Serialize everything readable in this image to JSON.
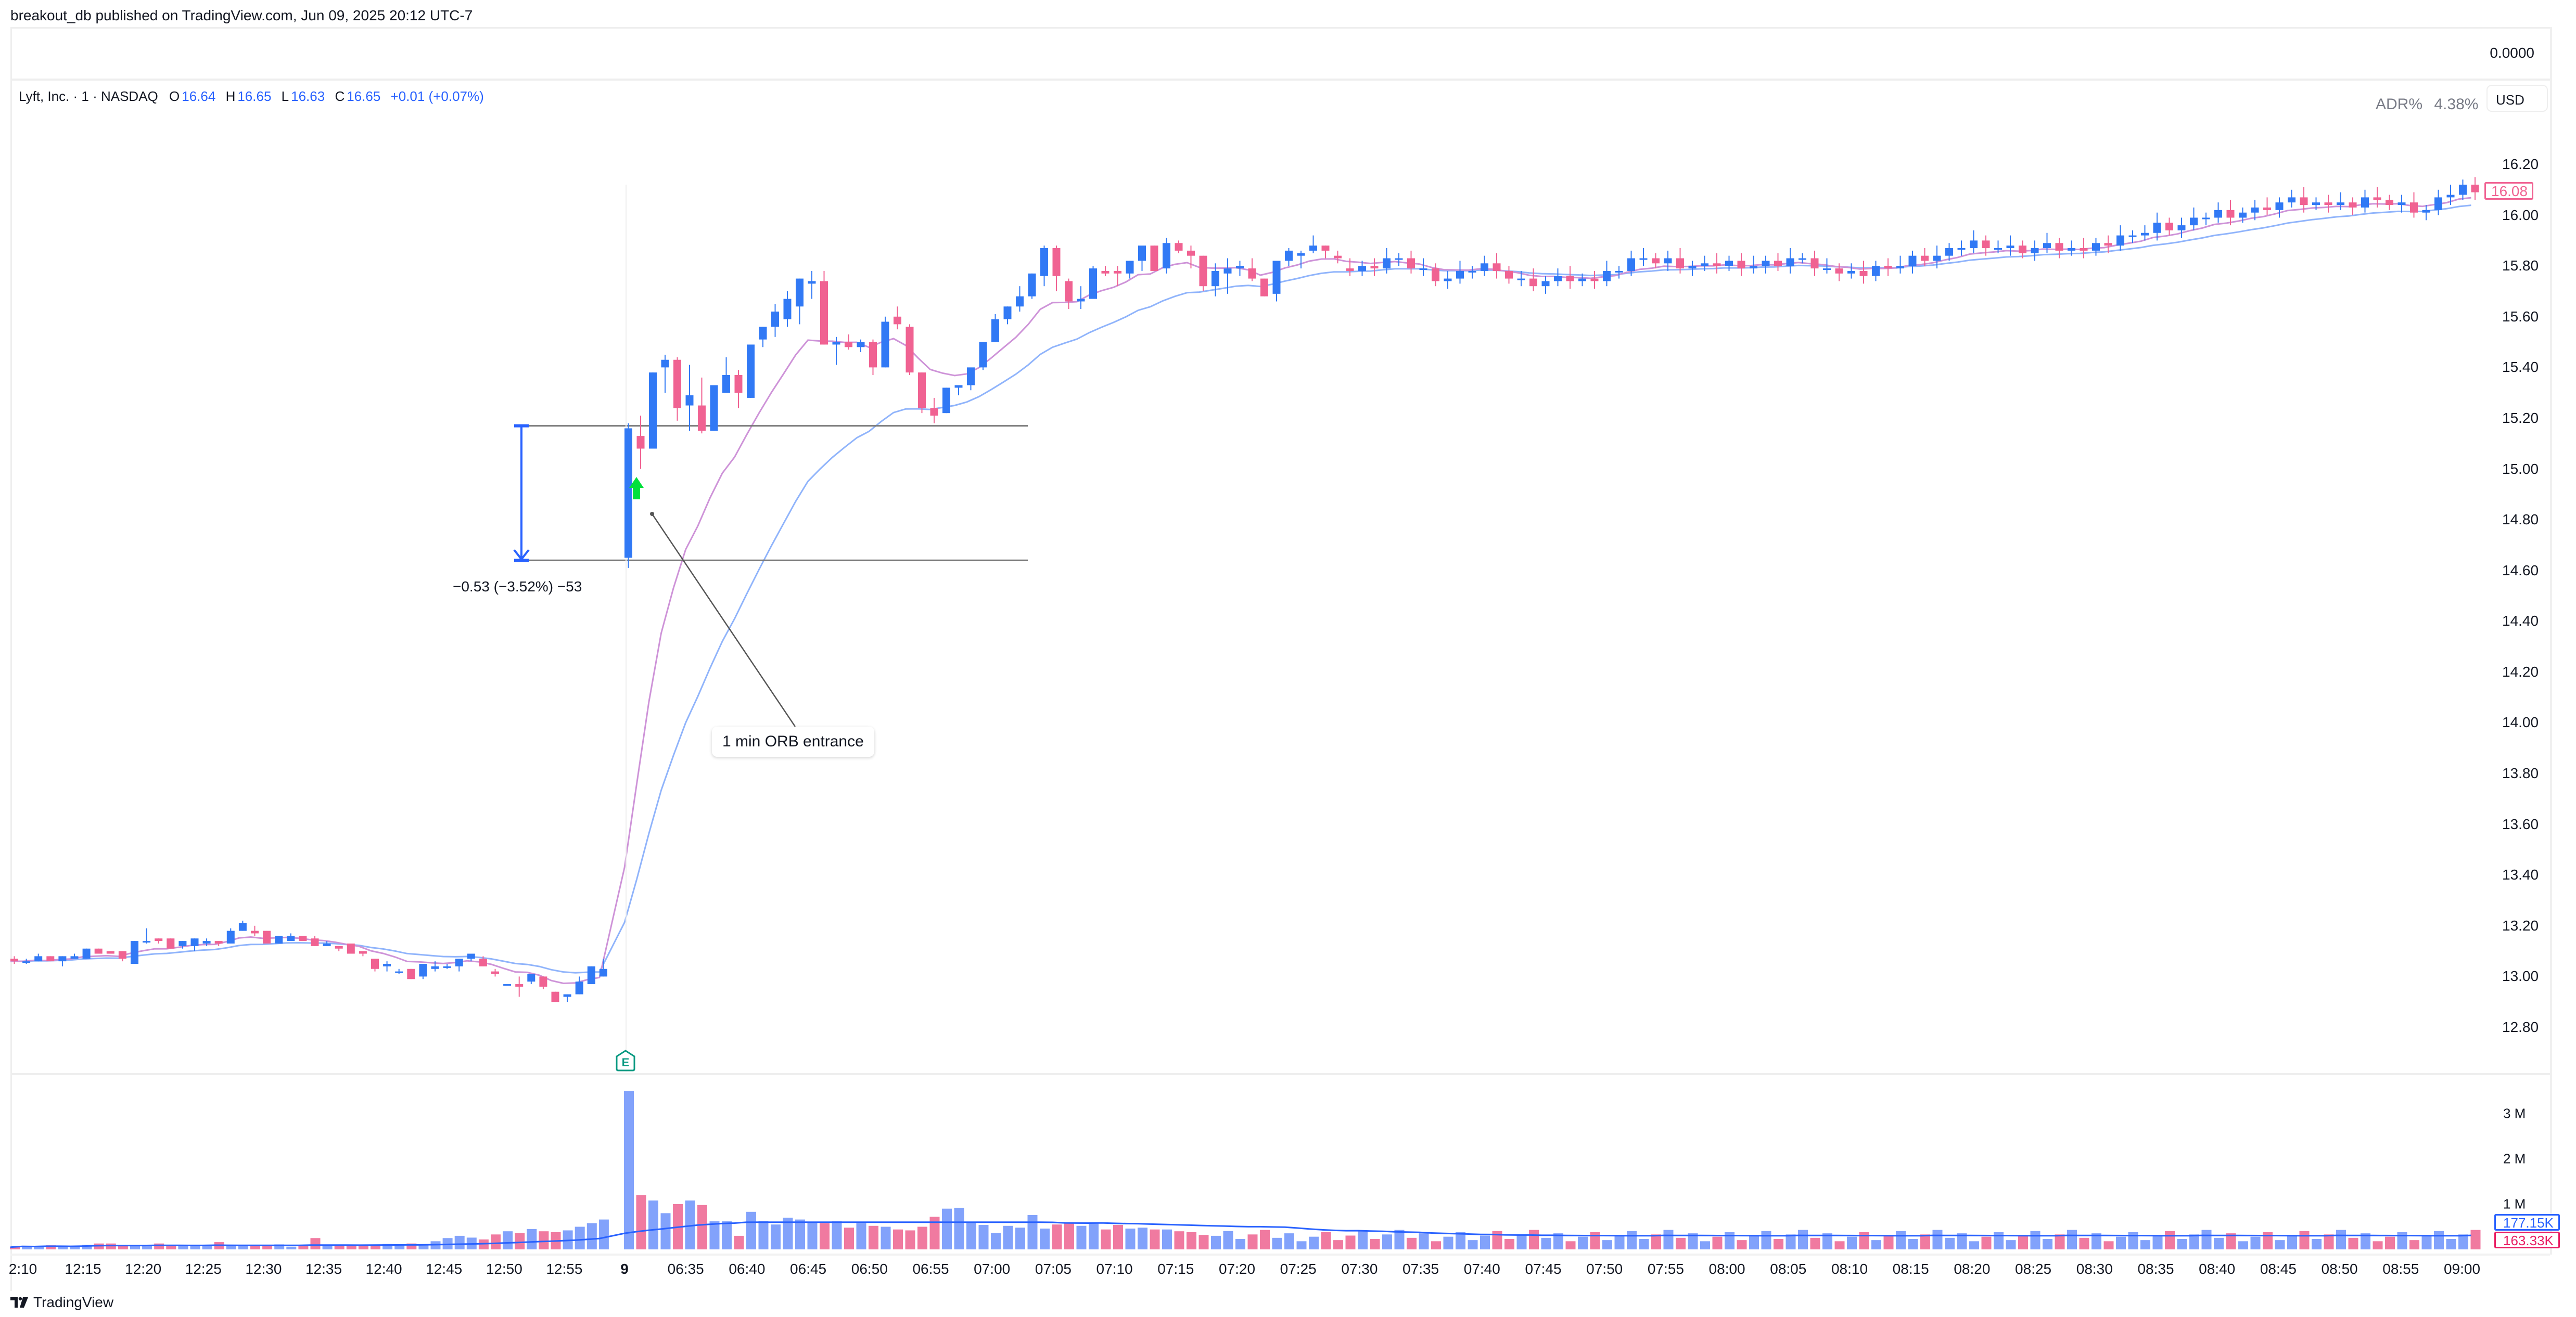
{
  "header": {
    "published": "breakout_db published on TradingView.com, Jun 09, 2025 20:12 UTC-7"
  },
  "top_pane": {
    "value": "0.0000"
  },
  "legend": {
    "symbol": "Lyft, Inc. · 1 · NASDAQ",
    "o_label": "O",
    "o": "16.64",
    "h_label": "H",
    "h": "16.65",
    "l_label": "L",
    "l": "16.63",
    "c_label": "C",
    "c": "16.65",
    "change": "+0.01 (+0.07%)"
  },
  "indicator": {
    "label": "ADR%",
    "value": "4.38%"
  },
  "currency": "USD",
  "last_price": "16.08",
  "volume_tags": {
    "ma": "177.15K",
    "last": "163.33K"
  },
  "measure": {
    "label": "−0.53 (−3.52%) −53"
  },
  "callout": {
    "text": "1 min ORB entrance"
  },
  "earnings_marker": "E",
  "footer": {
    "brand": "TradingView"
  },
  "colors": {
    "up": "#3179f5",
    "down": "#f06292",
    "vol_up": "#82a2fb",
    "vol_down": "#f07aa0",
    "ema_fast": "#ce93d8",
    "ema_slow": "#90b4fb",
    "vol_ma": "#2962ff",
    "hline": "#787878",
    "measure": "#2962ff",
    "signal": "#00e03c",
    "earnings": "#089981"
  },
  "chart_data": {
    "type": "candlestick",
    "title": "Lyft, Inc. · 1 · NASDAQ",
    "xlabel": "",
    "ylabel": "USD",
    "ylim": [
      12.7,
      16.4
    ],
    "price_ticks": [
      "16.20",
      "16.00",
      "15.80",
      "15.60",
      "15.40",
      "15.20",
      "15.00",
      "14.80",
      "14.60",
      "14.40",
      "14.20",
      "14.00",
      "13.80",
      "13.60",
      "13.40",
      "13.20",
      "13.00",
      "12.80"
    ],
    "volume_ticks": [
      "3 M",
      "2 M",
      "1 M"
    ],
    "time_ticks": [
      "2:10",
      "12:15",
      "12:20",
      "12:25",
      "12:30",
      "12:35",
      "12:40",
      "12:45",
      "12:50",
      "12:55",
      "9",
      "06:35",
      "06:40",
      "06:45",
      "06:50",
      "06:55",
      "07:00",
      "07:05",
      "07:10",
      "07:15",
      "07:20",
      "07:25",
      "07:30",
      "07:35",
      "07:40",
      "07:45",
      "07:50",
      "07:55",
      "08:00",
      "08:05",
      "08:10",
      "08:15",
      "08:20",
      "08:25",
      "08:30",
      "08:35",
      "08:40",
      "08:45",
      "08:50",
      "08:55",
      "09:00"
    ],
    "levels": {
      "orb_high": 15.17,
      "orb_low": 14.64
    },
    "series": [
      {
        "name": "prev_session_close",
        "ohlc": [
          [
            13.07,
            13.08,
            13.05,
            13.06
          ],
          [
            13.06,
            13.07,
            13.05,
            13.06
          ],
          [
            13.06,
            13.09,
            13.06,
            13.08
          ],
          [
            13.08,
            13.08,
            13.06,
            13.06
          ],
          [
            13.06,
            13.08,
            13.04,
            13.08
          ],
          [
            13.07,
            13.09,
            13.07,
            13.08
          ],
          [
            13.07,
            13.11,
            13.07,
            13.11
          ],
          [
            13.11,
            13.11,
            13.09,
            13.09
          ],
          [
            13.1,
            13.1,
            13.09,
            13.09
          ],
          [
            13.1,
            13.1,
            13.06,
            13.07
          ],
          [
            13.05,
            13.14,
            13.05,
            13.14
          ],
          [
            13.14,
            13.19,
            13.13,
            13.14
          ],
          [
            13.15,
            13.15,
            13.13,
            13.14
          ],
          [
            13.15,
            13.15,
            13.11,
            13.11
          ],
          [
            13.12,
            13.14,
            13.11,
            13.14
          ],
          [
            13.12,
            13.15,
            13.1,
            13.15
          ],
          [
            13.13,
            13.15,
            13.12,
            13.14
          ],
          [
            13.14,
            13.14,
            13.12,
            13.13
          ],
          [
            13.13,
            13.19,
            13.13,
            13.18
          ],
          [
            13.18,
            13.22,
            13.18,
            13.21
          ],
          [
            13.18,
            13.2,
            13.16,
            13.17
          ],
          [
            13.18,
            13.18,
            13.13,
            13.13
          ],
          [
            13.13,
            13.16,
            13.13,
            13.16
          ],
          [
            13.14,
            13.17,
            13.14,
            13.16
          ],
          [
            13.16,
            13.16,
            13.14,
            13.14
          ],
          [
            13.15,
            13.16,
            13.12,
            13.12
          ],
          [
            13.12,
            13.14,
            13.12,
            13.13
          ],
          [
            13.12,
            13.12,
            13.1,
            13.11
          ],
          [
            13.13,
            13.13,
            13.09,
            13.09
          ],
          [
            13.1,
            13.1,
            13.08,
            13.09
          ],
          [
            13.07,
            13.07,
            13.02,
            13.03
          ],
          [
            13.04,
            13.06,
            13.02,
            13.05
          ],
          [
            13.02,
            13.03,
            13.01,
            13.02
          ],
          [
            13.03,
            13.03,
            12.99,
            12.99
          ],
          [
            13.0,
            13.05,
            12.99,
            13.05
          ],
          [
            13.03,
            13.06,
            13.02,
            13.04
          ],
          [
            13.04,
            13.05,
            13.03,
            13.04
          ],
          [
            13.04,
            13.07,
            13.02,
            13.07
          ],
          [
            13.07,
            13.09,
            13.06,
            13.09
          ],
          [
            13.07,
            13.08,
            13.04,
            13.04
          ],
          [
            13.02,
            13.03,
            13.0,
            13.01
          ],
          [
            12.97,
            12.97,
            12.97,
            12.97
          ],
          [
            12.97,
            13.0,
            12.92,
            12.96
          ],
          [
            12.98,
            13.01,
            12.97,
            13.01
          ],
          [
            13.0,
            13.0,
            12.95,
            12.96
          ],
          [
            12.94,
            12.94,
            12.9,
            12.9
          ],
          [
            12.92,
            12.93,
            12.9,
            12.93
          ],
          [
            12.93,
            13.0,
            12.93,
            12.98
          ],
          [
            12.97,
            13.04,
            12.97,
            13.04
          ],
          [
            13.0,
            13.07,
            13.0,
            13.03
          ]
        ]
      },
      {
        "name": "session",
        "ohlc": [
          [
            14.65,
            15.18,
            14.61,
            15.16
          ],
          [
            15.13,
            15.21,
            15.0,
            15.08
          ],
          [
            15.08,
            15.38,
            15.08,
            15.38
          ],
          [
            15.4,
            15.45,
            15.3,
            15.43
          ],
          [
            15.43,
            15.44,
            15.19,
            15.24
          ],
          [
            15.25,
            15.41,
            15.15,
            15.29
          ],
          [
            15.25,
            15.36,
            15.14,
            15.15
          ],
          [
            15.15,
            15.33,
            15.15,
            15.33
          ],
          [
            15.3,
            15.44,
            15.3,
            15.37
          ],
          [
            15.37,
            15.39,
            15.24,
            15.3
          ],
          [
            15.28,
            15.46,
            15.28,
            15.49
          ],
          [
            15.51,
            15.56,
            15.48,
            15.56
          ],
          [
            15.56,
            15.65,
            15.52,
            15.62
          ],
          [
            15.59,
            15.7,
            15.56,
            15.67
          ],
          [
            15.64,
            15.75,
            15.57,
            15.75
          ],
          [
            15.73,
            15.78,
            15.67,
            15.74
          ],
          [
            15.74,
            15.78,
            15.49,
            15.49
          ],
          [
            15.49,
            15.52,
            15.41,
            15.5
          ],
          [
            15.5,
            15.53,
            15.47,
            15.48
          ],
          [
            15.48,
            15.51,
            15.46,
            15.5
          ],
          [
            15.5,
            15.51,
            15.37,
            15.4
          ],
          [
            15.4,
            15.6,
            15.4,
            15.58
          ],
          [
            15.6,
            15.64,
            15.55,
            15.57
          ],
          [
            15.56,
            15.57,
            15.37,
            15.38
          ],
          [
            15.38,
            15.38,
            15.22,
            15.24
          ],
          [
            15.24,
            15.28,
            15.18,
            15.21
          ],
          [
            15.22,
            15.32,
            15.22,
            15.32
          ],
          [
            15.32,
            15.33,
            15.29,
            15.33
          ],
          [
            15.33,
            15.38,
            15.31,
            15.4
          ],
          [
            15.4,
            15.49,
            15.39,
            15.5
          ],
          [
            15.5,
            15.61,
            15.5,
            15.59
          ],
          [
            15.59,
            15.64,
            15.57,
            15.64
          ],
          [
            15.64,
            15.72,
            15.62,
            15.68
          ],
          [
            15.68,
            15.77,
            15.67,
            15.77
          ],
          [
            15.76,
            15.88,
            15.72,
            15.87
          ],
          [
            15.87,
            15.88,
            15.7,
            15.76
          ],
          [
            15.74,
            15.75,
            15.63,
            15.66
          ],
          [
            15.66,
            15.72,
            15.63,
            15.67
          ],
          [
            15.67,
            15.8,
            15.68,
            15.79
          ],
          [
            15.78,
            15.8,
            15.76,
            15.77
          ],
          [
            15.78,
            15.8,
            15.72,
            15.77
          ],
          [
            15.77,
            15.82,
            15.75,
            15.82
          ],
          [
            15.82,
            15.87,
            15.78,
            15.88
          ],
          [
            15.88,
            15.88,
            15.78,
            15.78
          ],
          [
            15.79,
            15.91,
            15.77,
            15.89
          ],
          [
            15.89,
            15.9,
            15.85,
            15.86
          ],
          [
            15.86,
            15.88,
            15.79,
            15.84
          ],
          [
            15.84,
            15.84,
            15.7,
            15.72
          ],
          [
            15.72,
            15.81,
            15.68,
            15.78
          ],
          [
            15.77,
            15.83,
            15.69,
            15.79
          ],
          [
            15.79,
            15.82,
            15.76,
            15.8
          ],
          [
            15.79,
            15.83,
            15.74,
            15.75
          ],
          [
            15.75,
            15.75,
            15.68,
            15.68
          ],
          [
            15.69,
            15.8,
            15.66,
            15.82
          ],
          [
            15.82,
            15.87,
            15.8,
            15.86
          ],
          [
            15.84,
            15.86,
            15.79,
            15.85
          ],
          [
            15.86,
            15.92,
            15.85,
            15.88
          ],
          [
            15.88,
            15.88,
            15.83,
            15.86
          ],
          [
            15.84,
            15.86,
            15.81,
            15.83
          ],
          [
            15.79,
            15.83,
            15.76,
            15.78
          ]
        ]
      }
    ],
    "ema_fast_desc": "pink EMA tracks just below price after open",
    "ema_slow_desc": "blue EMA lags below pink EMA",
    "volume_peak": 3500000,
    "volume_ma_last": 177150,
    "volume_last": 163330
  }
}
